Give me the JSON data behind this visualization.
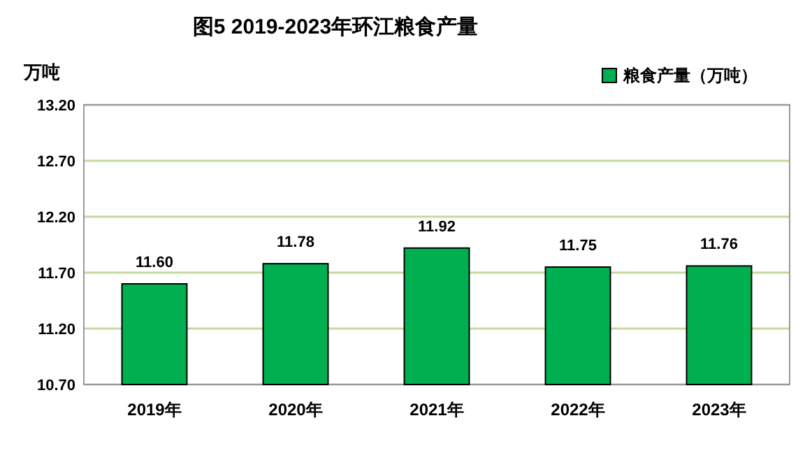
{
  "chart_data": {
    "type": "bar",
    "title": "图5    2019-2023年环江粮食产量",
    "ylabel": "万吨",
    "categories": [
      "2019年",
      "2020年",
      "2021年",
      "2022年",
      "2023年"
    ],
    "series": [
      {
        "name": "粮食产量（万吨）",
        "color": "#00b050",
        "values": [
          11.6,
          11.78,
          11.92,
          11.75,
          11.76
        ],
        "value_labels": [
          "11.60",
          "11.78",
          "11.92",
          "11.75",
          "11.76"
        ]
      }
    ],
    "ylim": [
      10.7,
      13.2
    ],
    "yticks": [
      {
        "value": 10.7,
        "label": "10.70"
      },
      {
        "value": 11.2,
        "label": "11.20"
      },
      {
        "value": 11.7,
        "label": "11.70"
      },
      {
        "value": 12.2,
        "label": "12.20"
      },
      {
        "value": 12.7,
        "label": "12.70"
      },
      {
        "value": 13.2,
        "label": "13.20"
      }
    ],
    "grid": "y",
    "legend": "top right"
  }
}
